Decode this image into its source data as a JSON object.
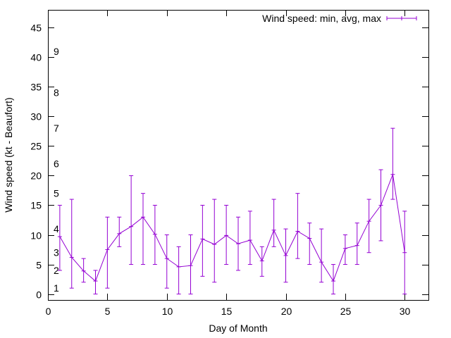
{
  "chart_data": {
    "type": "line",
    "title": "",
    "xlabel": "Day of Month",
    "ylabel": "Wind speed (kt - Beaufort)",
    "xlim": [
      0,
      32
    ],
    "ylim": [
      -1,
      48
    ],
    "xticks": [
      0,
      5,
      10,
      15,
      20,
      25,
      30
    ],
    "yticks": [
      0,
      5,
      10,
      15,
      20,
      25,
      30,
      35,
      40,
      45
    ],
    "grid": false,
    "legend_position": "top-right",
    "series": [
      {
        "name": "Wind speed: min, avg, max",
        "color": "#9400d3",
        "style": "line with error bars",
        "x": [
          1,
          2,
          3,
          4,
          5,
          6,
          7,
          8,
          9,
          10,
          11,
          12,
          13,
          14,
          15,
          16,
          17,
          18,
          19,
          20,
          21,
          22,
          23,
          24,
          25,
          26,
          27,
          28,
          29,
          30
        ],
        "avg": [
          9.7,
          6.2,
          3.9,
          2.2,
          7.5,
          10.2,
          11.4,
          13.0,
          10.1,
          6.0,
          4.6,
          4.8,
          9.3,
          8.4,
          9.9,
          8.5,
          9.1,
          5.6,
          10.8,
          6.5,
          10.6,
          9.4,
          5.4,
          2.2,
          7.7,
          8.2,
          12.3,
          15.0,
          20.2,
          7.0
        ],
        "min": [
          4,
          1,
          2,
          0,
          1,
          8,
          5,
          5,
          5,
          1,
          0,
          0,
          3,
          2,
          5,
          4,
          5,
          3,
          8,
          2,
          6,
          5,
          2,
          0,
          5,
          5,
          7,
          9,
          16,
          0
        ],
        "max": [
          15,
          16,
          6,
          4,
          13,
          13,
          20,
          17,
          15,
          10,
          8,
          10,
          15,
          16,
          15,
          13,
          14,
          8,
          16,
          11,
          17,
          12,
          11,
          5,
          10,
          12,
          16,
          21,
          28,
          14
        ]
      }
    ],
    "annotations": [
      {
        "text": "1",
        "y": 1
      },
      {
        "text": "2",
        "y": 4
      },
      {
        "text": "3",
        "y": 7
      },
      {
        "text": "4",
        "y": 11
      },
      {
        "text": "5",
        "y": 17
      },
      {
        "text": "6",
        "y": 22
      },
      {
        "text": "7",
        "y": 28
      },
      {
        "text": "8",
        "y": 34
      },
      {
        "text": "9",
        "y": 41
      }
    ]
  }
}
